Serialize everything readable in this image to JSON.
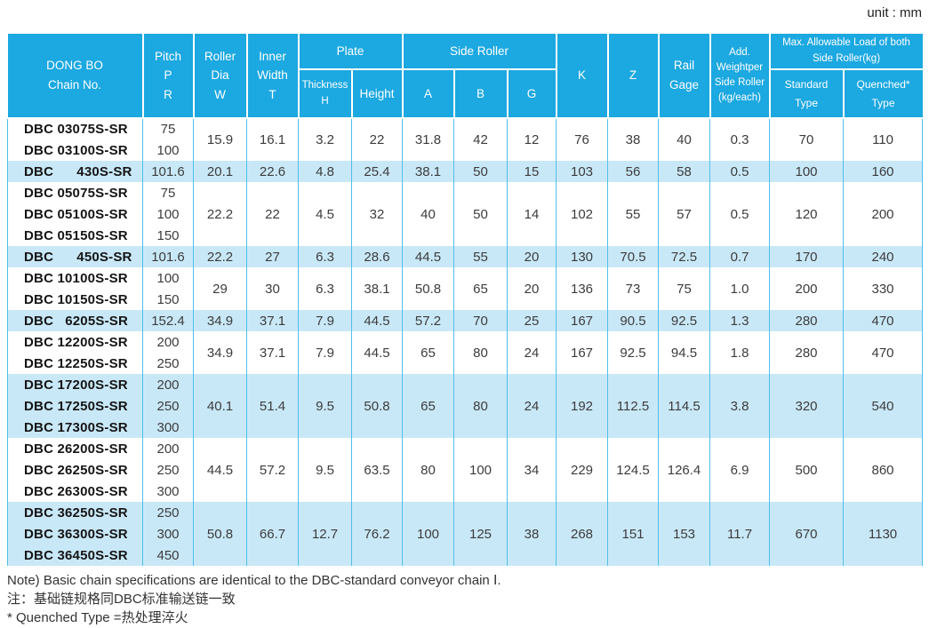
{
  "unit_label": "unit : mm",
  "colors": {
    "header_blue": "#1CA8E0",
    "row_highlight": "#C9E8F7",
    "grid_line": "#4FBFEB",
    "header_text": "#FFFFFF",
    "body_text": "#3C3C3C"
  },
  "table": {
    "header": {
      "chain_no": "DONG BO\nChain No.",
      "pitch": "Pitch\nP\nR",
      "roller_dia": "Roller\nDia\nW",
      "inner_width": "Inner\nWidth\nT",
      "plate_group": "Plate",
      "thickness": "Thickness\nH",
      "height": "Height",
      "side_roller_group": "Side Roller",
      "a": "A",
      "b": "B",
      "g": "G",
      "k": "K",
      "z": "Z",
      "rail_gage": "Rail\nGage",
      "add_weight": "Add.\nWeightper\nSide Roller\n(kg/each)",
      "max_load_group": "Max. Allowable Load of both\nSide Roller(kg)",
      "standard_type": "Standard\nType",
      "quenched_type": "Quenched*\nType"
    },
    "value_columns": [
      "roller_dia_w",
      "inner_width_t",
      "plate_thickness_h",
      "plate_height",
      "side_roller_a",
      "side_roller_b",
      "side_roller_g",
      "k",
      "z",
      "rail_gage",
      "add_weight_per_side_roller",
      "max_load_standard_type",
      "max_load_quenched_type"
    ],
    "groups": [
      {
        "highlight": false,
        "rows": [
          {
            "chain_no": "DBC 03075S-SR",
            "pitch": "75"
          },
          {
            "chain_no": "DBC 03100S-SR",
            "pitch": "100"
          }
        ],
        "values": [
          "15.9",
          "16.1",
          "3.2",
          "22",
          "31.8",
          "42",
          "12",
          "76",
          "38",
          "40",
          "0.3",
          "70",
          "110"
        ]
      },
      {
        "highlight": true,
        "rows": [
          {
            "chain_no": "DBC      430S-SR",
            "pitch": "101.6"
          }
        ],
        "values": [
          "20.1",
          "22.6",
          "4.8",
          "25.4",
          "38.1",
          "50",
          "15",
          "103",
          "56",
          "58",
          "0.5",
          "100",
          "160"
        ]
      },
      {
        "highlight": false,
        "rows": [
          {
            "chain_no": "DBC 05075S-SR",
            "pitch": "75"
          },
          {
            "chain_no": "DBC 05100S-SR",
            "pitch": "100"
          },
          {
            "chain_no": "DBC 05150S-SR",
            "pitch": "150"
          }
        ],
        "values": [
          "22.2",
          "22",
          "4.5",
          "32",
          "40",
          "50",
          "14",
          "102",
          "55",
          "57",
          "0.5",
          "120",
          "200"
        ]
      },
      {
        "highlight": true,
        "rows": [
          {
            "chain_no": "DBC      450S-SR",
            "pitch": "101.6"
          }
        ],
        "values": [
          "22.2",
          "27",
          "6.3",
          "28.6",
          "44.5",
          "55",
          "20",
          "130",
          "70.5",
          "72.5",
          "0.7",
          "170",
          "240"
        ]
      },
      {
        "highlight": false,
        "rows": [
          {
            "chain_no": "DBC 10100S-SR",
            "pitch": "100"
          },
          {
            "chain_no": "DBC 10150S-SR",
            "pitch": "150"
          }
        ],
        "values": [
          "29",
          "30",
          "6.3",
          "38.1",
          "50.8",
          "65",
          "20",
          "136",
          "73",
          "75",
          "1.0",
          "200",
          "330"
        ]
      },
      {
        "highlight": true,
        "rows": [
          {
            "chain_no": "DBC   6205S-SR",
            "pitch": "152.4"
          }
        ],
        "values": [
          "34.9",
          "37.1",
          "7.9",
          "44.5",
          "57.2",
          "70",
          "25",
          "167",
          "90.5",
          "92.5",
          "1.3",
          "280",
          "470"
        ]
      },
      {
        "highlight": false,
        "rows": [
          {
            "chain_no": "DBC 12200S-SR",
            "pitch": "200"
          },
          {
            "chain_no": "DBC 12250S-SR",
            "pitch": "250"
          }
        ],
        "values": [
          "34.9",
          "37.1",
          "7.9",
          "44.5",
          "65",
          "80",
          "24",
          "167",
          "92.5",
          "94.5",
          "1.8",
          "280",
          "470"
        ]
      },
      {
        "highlight": true,
        "rows": [
          {
            "chain_no": "DBC 17200S-SR",
            "pitch": "200"
          },
          {
            "chain_no": "DBC 17250S-SR",
            "pitch": "250"
          },
          {
            "chain_no": "DBC 17300S-SR",
            "pitch": "300"
          }
        ],
        "values": [
          "40.1",
          "51.4",
          "9.5",
          "50.8",
          "65",
          "80",
          "24",
          "192",
          "112.5",
          "114.5",
          "3.8",
          "320",
          "540"
        ]
      },
      {
        "highlight": false,
        "rows": [
          {
            "chain_no": "DBC 26200S-SR",
            "pitch": "200"
          },
          {
            "chain_no": "DBC 26250S-SR",
            "pitch": "250"
          },
          {
            "chain_no": "DBC 26300S-SR",
            "pitch": "300"
          }
        ],
        "values": [
          "44.5",
          "57.2",
          "9.5",
          "63.5",
          "80",
          "100",
          "34",
          "229",
          "124.5",
          "126.4",
          "6.9",
          "500",
          "860"
        ]
      },
      {
        "highlight": true,
        "rows": [
          {
            "chain_no": "DBC 36250S-SR",
            "pitch": "250"
          },
          {
            "chain_no": "DBC 36300S-SR",
            "pitch": "300"
          },
          {
            "chain_no": "DBC 36450S-SR",
            "pitch": "450"
          }
        ],
        "values": [
          "50.8",
          "66.7",
          "12.7",
          "76.2",
          "100",
          "125",
          "38",
          "268",
          "151",
          "153",
          "11.7",
          "670",
          "1130"
        ]
      }
    ]
  },
  "notes": [
    "Note) Basic chain specifications are identical to the DBC-standard conveyor chain Ⅰ.",
    "注：基础链规格同DBC标准输送链一致",
    "* Quenched Type =热处理淬火"
  ]
}
